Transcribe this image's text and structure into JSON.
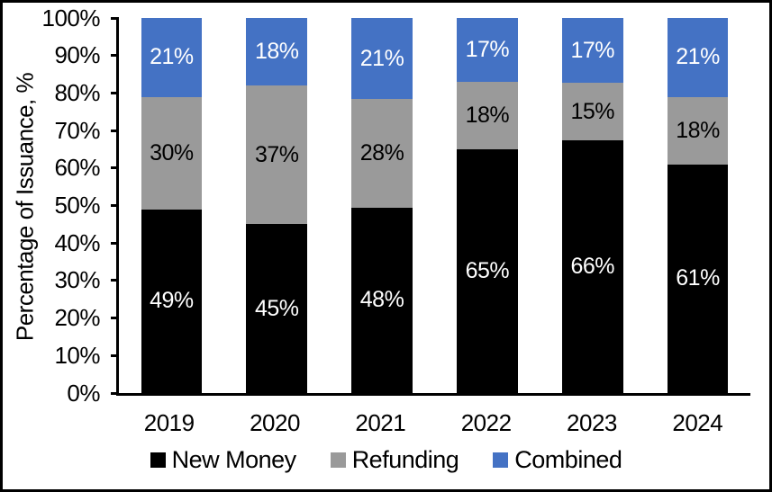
{
  "colors": {
    "background": "#FFFFFF",
    "border": "#000000",
    "axis": "#000000",
    "text": "#000000"
  },
  "chart_data": {
    "type": "bar",
    "stacked": true,
    "title": "",
    "xlabel": "",
    "ylabel": "Percentage of Issuance, %",
    "ylim": [
      0,
      100
    ],
    "ytick_labels": [
      "0%",
      "10%",
      "20%",
      "30%",
      "40%",
      "50%",
      "60%",
      "70%",
      "80%",
      "90%",
      "100%"
    ],
    "grid": false,
    "legend_position": "bottom",
    "categories": [
      "2019",
      "2020",
      "2021",
      "2022",
      "2023",
      "2024"
    ],
    "series": [
      {
        "name": "New Money",
        "color": "#000000",
        "label_color": "#FFFFFF",
        "values": [
          49,
          45,
          48,
          65,
          66,
          61
        ],
        "labels": [
          "49%",
          "45%",
          "48%",
          "65%",
          "66%",
          "61%"
        ]
      },
      {
        "name": "Refunding",
        "color": "#9A9A9A",
        "label_color": "#000000",
        "values": [
          30,
          37,
          28,
          18,
          15,
          18
        ],
        "labels": [
          "30%",
          "37%",
          "28%",
          "18%",
          "15%",
          "18%"
        ]
      },
      {
        "name": "Combined",
        "color": "#4472C4",
        "label_color": "#FFFFFF",
        "values": [
          21,
          18,
          21,
          17,
          17,
          21
        ],
        "labels": [
          "21%",
          "18%",
          "21%",
          "17%",
          "17%",
          "21%"
        ]
      }
    ]
  }
}
